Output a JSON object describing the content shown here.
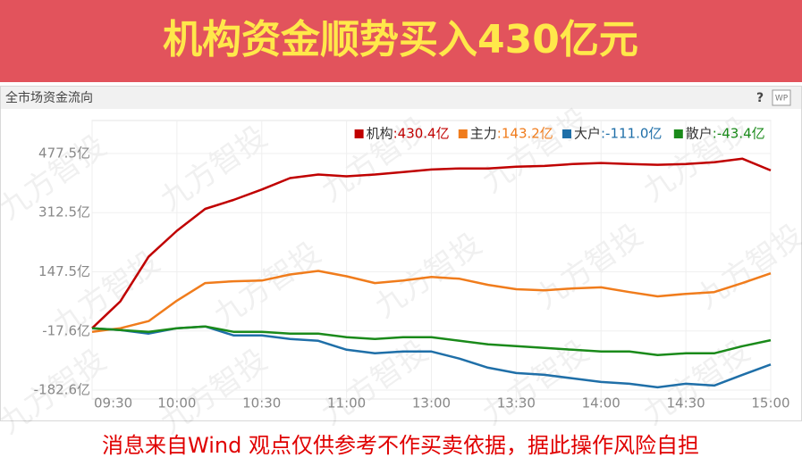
{
  "banner": "机构资金顺势买入430亿元",
  "panel": {
    "title": "全市场资金流向",
    "help": "?",
    "icon": "WP"
  },
  "watermark": "九方智投",
  "footer": "消息来自Wind  观点仅供参考不作买卖依据，据此操作风险自担",
  "chart_data": {
    "type": "line",
    "x": [
      "09:30",
      "09:40",
      "09:50",
      "10:00",
      "10:10",
      "10:20",
      "10:30",
      "10:40",
      "10:50",
      "11:00",
      "11:10",
      "11:20",
      "13:00",
      "13:10",
      "13:20",
      "13:30",
      "13:40",
      "13:50",
      "14:00",
      "14:10",
      "14:20",
      "14:30",
      "14:40",
      "14:50",
      "15:00"
    ],
    "xticks": [
      "09:30",
      "10:00",
      "10:30",
      "11:00",
      "13:00",
      "13:30",
      "14:00",
      "14:30",
      "15:00"
    ],
    "ylim": [
      -182.6,
      477.5
    ],
    "yticks": [
      {
        "value": -182.6,
        "label": "-182.6亿"
      },
      {
        "value": -17.6,
        "label": "-17.6亿"
      },
      {
        "value": 147.5,
        "label": "147.5亿"
      },
      {
        "value": 312.5,
        "label": "312.5亿"
      },
      {
        "value": 477.5,
        "label": "477.5亿"
      }
    ],
    "grid": true,
    "legend": "top-right",
    "series": [
      {
        "name": "机构",
        "color": "#c00000",
        "value_label": ":430.4亿",
        "values": [
          -10,
          65,
          190,
          262,
          323,
          348,
          377,
          409,
          419,
          414,
          419,
          426,
          433,
          436,
          436,
          441,
          443,
          448,
          451,
          448,
          446,
          448,
          453,
          463,
          430.4
        ]
      },
      {
        "name": "主力",
        "color": "#f07c1c",
        "value_label": ":143.2亿",
        "values": [
          -20,
          -10,
          10,
          67,
          116,
          121,
          123,
          140,
          150,
          135,
          116,
          123,
          133,
          128,
          111,
          99,
          96,
          101,
          104,
          91,
          79,
          86,
          91,
          116,
          143.2
        ]
      },
      {
        "name": "大户",
        "color": "#1f6fa8",
        "value_label": ":-111.0亿",
        "values": [
          -10,
          -15,
          -25,
          -10,
          -5,
          -30,
          -30,
          -40,
          -45,
          -70,
          -80,
          -75,
          -75,
          -95,
          -120,
          -135,
          -140,
          -150,
          -160,
          -165,
          -175,
          -165,
          -170,
          -140,
          -111.0
        ]
      },
      {
        "name": "散户",
        "color": "#1a8a1a",
        "value_label": ":-43.4亿",
        "values": [
          -10,
          -15,
          -20,
          -10,
          -5,
          -20,
          -20,
          -25,
          -25,
          -35,
          -40,
          -35,
          -35,
          -45,
          -55,
          -60,
          -65,
          -70,
          -75,
          -75,
          -85,
          -80,
          -80,
          -60,
          -43.4
        ]
      }
    ]
  }
}
